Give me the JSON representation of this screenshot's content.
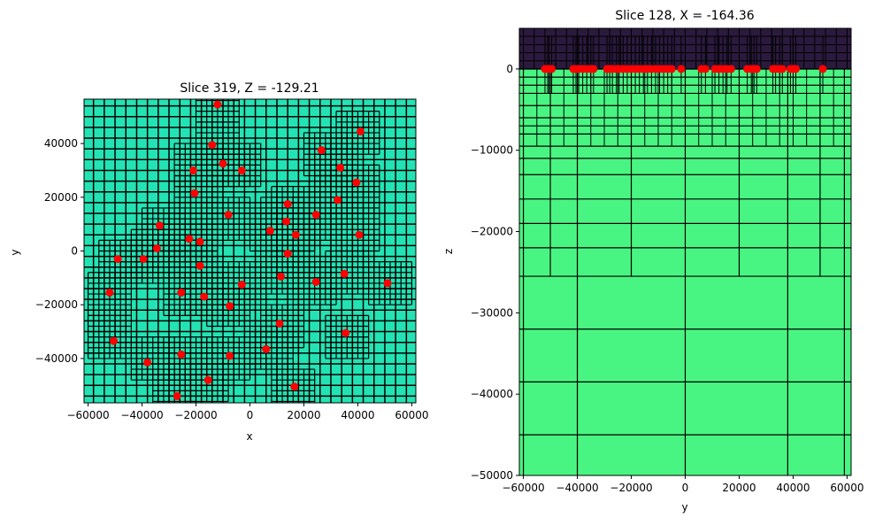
{
  "chart_data": [
    {
      "type": "scatter",
      "title": "Slice 319, Z = -129.21",
      "xlabel": "x",
      "ylabel": "y",
      "xlim": [
        -61500,
        61500
      ],
      "ylim": [
        -56500,
        56500
      ],
      "xticks": [
        -60000,
        -40000,
        -20000,
        0,
        20000,
        40000,
        60000
      ],
      "yticks": [
        -40000,
        -20000,
        0,
        20000,
        40000
      ],
      "background_cell_color": "#23e3b4",
      "grid_line_color": "#000000",
      "marker_color": "#ff0000",
      "points": {
        "x": [
          -12000,
          -14000,
          -10000,
          -21000,
          -3000,
          -20500,
          26500,
          33500,
          41000,
          39500,
          14000,
          32500,
          -8000,
          13500,
          24500,
          -33500,
          7500,
          17000,
          -22500,
          -18500,
          40500,
          -49000,
          -39500,
          -34500,
          14000,
          -18500,
          11500,
          24500,
          35000,
          -52000,
          -3000,
          51000,
          -25500,
          -17000,
          -7500,
          11000,
          -50500,
          35500,
          6000,
          -38000,
          -25500,
          -7500,
          -15500,
          16500,
          -27000
        ],
        "y": [
          54500,
          39500,
          32500,
          30000,
          30000,
          21500,
          37500,
          31000,
          44500,
          25500,
          17500,
          19000,
          13500,
          11000,
          13500,
          9500,
          7500,
          6000,
          4500,
          3500,
          6000,
          -3000,
          -3000,
          1000,
          -1000,
          -5500,
          -9500,
          -11500,
          -8500,
          -15500,
          -12500,
          -12000,
          -15500,
          -17000,
          -20500,
          -27000,
          -33500,
          -30500,
          -36500,
          -41500,
          -38500,
          -39000,
          -48000,
          -50500,
          -54000
        ]
      },
      "mesh": {
        "base_cell": 4000,
        "refine_cell": 1000
      }
    },
    {
      "type": "heatmap",
      "title": "Slice 128, X = -164.36",
      "xlabel": "y",
      "ylabel": "z",
      "xlim": [
        -61500,
        61500
      ],
      "ylim": [
        -50000,
        5000
      ],
      "xticks": [
        -60000,
        -40000,
        -20000,
        0,
        20000,
        40000,
        60000
      ],
      "yticks": [
        0,
        -10000,
        -20000,
        -30000,
        -40000,
        -50000
      ],
      "air_color": "#2b1a3e",
      "ground_color": "#49f582",
      "grid_line_color": "#000000",
      "marker_color": "#ff0000",
      "surface_z": 0,
      "points": {
        "y": [
          -52000,
          -51000,
          -50500,
          -49500,
          -41500,
          -40500,
          -39500,
          -38000,
          -36500,
          -35000,
          -34000,
          -29000,
          -28000,
          -27000,
          -25500,
          -24500,
          -23000,
          -21500,
          -20000,
          -18500,
          -17000,
          -15500,
          -14000,
          -12500,
          -11000,
          -9500,
          -8000,
          -6500,
          -5000,
          -1500,
          6000,
          7500,
          11000,
          12500,
          14000,
          15500,
          17000,
          23000,
          24500,
          25500,
          26500,
          32500,
          33500,
          35000,
          36000,
          39000,
          40000,
          41000,
          51000
        ],
        "z": [
          0,
          0,
          0,
          0,
          0,
          0,
          0,
          0,
          0,
          0,
          0,
          0,
          0,
          0,
          0,
          0,
          0,
          0,
          0,
          0,
          0,
          0,
          0,
          0,
          0,
          0,
          0,
          0,
          0,
          0,
          0,
          0,
          0,
          0,
          0,
          0,
          0,
          0,
          0,
          0,
          0,
          0,
          0,
          0,
          0,
          0,
          0,
          0,
          0
        ]
      },
      "mesh": {
        "vertical_lines": [
          -60000,
          -40000,
          0,
          38000,
          59000
        ],
        "horizontal_lines": [
          -1000,
          -2000,
          -3000,
          -4500,
          -6000,
          -7000,
          -8000,
          -9500,
          -11000,
          -13000,
          -16000,
          -19000,
          -22000,
          -25500,
          -32000,
          -38500,
          -45000
        ]
      }
    }
  ]
}
